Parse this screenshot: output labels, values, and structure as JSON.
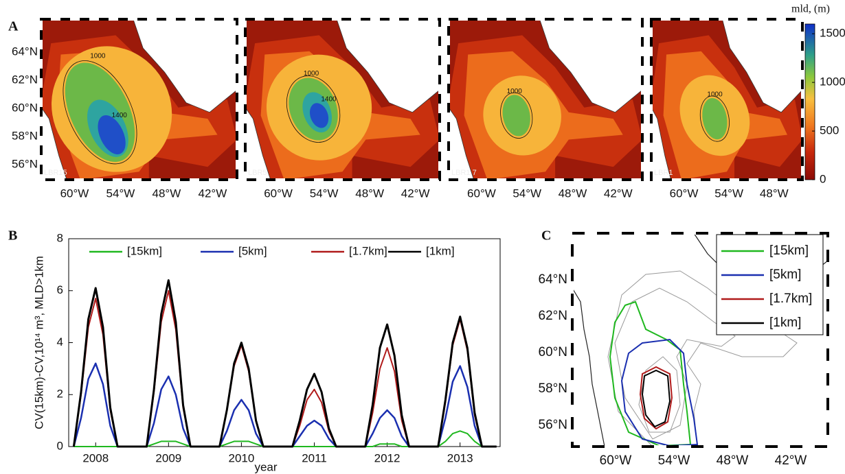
{
  "panel_labels": [
    "A",
    "B",
    "C"
  ],
  "maps": {
    "titles": [
      "LBR15",
      "LBR5",
      "LBR1.7",
      "LBR1"
    ],
    "lat_labels": [
      "64°N",
      "62°N",
      "60°N",
      "58°N",
      "56°N"
    ],
    "lon_labels": [
      "60°W",
      "54°W",
      "48°W",
      "42°W"
    ],
    "contour_labels": [
      "1000",
      "1400"
    ],
    "colorbar": {
      "title": "mld, (m)",
      "lim": [
        0,
        1600
      ],
      "ticks": [
        1500,
        1000,
        500,
        0
      ]
    }
  },
  "panel_c": {
    "lat_labels": [
      "64°N",
      "62°N",
      "60°N",
      "58°N",
      "56°N"
    ],
    "lon_labels": [
      "60°W",
      "54°W",
      "48°W",
      "42°W"
    ]
  },
  "chart_data": {
    "type": "line",
    "xlabel": "year",
    "ylabel": "CV(15km)-CV,10¹⁴ m³, MLD>1km",
    "x": [
      2007.7,
      2007.8,
      2007.9,
      2008.0,
      2008.1,
      2008.2,
      2008.3,
      2008.4,
      2008.5,
      2008.6,
      2008.7,
      2008.8,
      2008.9,
      2009.0,
      2009.1,
      2009.2,
      2009.3,
      2009.4,
      2009.5,
      2009.6,
      2009.7,
      2009.8,
      2009.9,
      2010.0,
      2010.1,
      2010.2,
      2010.3,
      2010.4,
      2010.5,
      2010.6,
      2010.7,
      2010.8,
      2010.9,
      2011.0,
      2011.1,
      2011.2,
      2011.3,
      2011.4,
      2011.5,
      2011.6,
      2011.7,
      2011.8,
      2011.9,
      2012.0,
      2012.1,
      2012.2,
      2012.3,
      2012.4,
      2012.5,
      2012.6,
      2012.7,
      2012.8,
      2012.9,
      2013.0,
      2013.1,
      2013.2,
      2013.3,
      2013.4,
      2013.5
    ],
    "xlim": [
      2007.63,
      2013.55
    ],
    "xticks": [
      2008,
      2009,
      2010,
      2011,
      2012,
      2013
    ],
    "ylim": [
      0,
      8
    ],
    "yticks": [
      0,
      2,
      4,
      6,
      8
    ],
    "series": [
      {
        "name": "[15km]",
        "color": "#1fb81f",
        "values": [
          0,
          0,
          0,
          0,
          0,
          0,
          0,
          0,
          0,
          0,
          0,
          0.1,
          0.2,
          0.2,
          0.2,
          0.1,
          0,
          0,
          0,
          0,
          0,
          0.1,
          0.2,
          0.2,
          0.2,
          0.1,
          0,
          0,
          0,
          0,
          0,
          0,
          0,
          0,
          0,
          0,
          0,
          0,
          0,
          0,
          0,
          0,
          0.1,
          0.1,
          0.1,
          0,
          0,
          0,
          0,
          0,
          0,
          0.2,
          0.5,
          0.6,
          0.5,
          0.2,
          0,
          0,
          0
        ]
      },
      {
        "name": "[5km]",
        "color": "#1a2fb0",
        "values": [
          0,
          1.1,
          2.6,
          3.2,
          2.4,
          0.8,
          0,
          0,
          0,
          0,
          0,
          0.9,
          2.2,
          2.7,
          2.0,
          0.7,
          0,
          0,
          0,
          0,
          0,
          0.6,
          1.4,
          1.8,
          1.4,
          0.5,
          0,
          0,
          0,
          0,
          0,
          0.4,
          0.8,
          1.0,
          0.8,
          0.3,
          0,
          0,
          0,
          0,
          0,
          0.5,
          1.1,
          1.4,
          1.1,
          0.4,
          0,
          0,
          0,
          0,
          0,
          1.1,
          2.5,
          3.1,
          2.3,
          0.8,
          0,
          0,
          0
        ]
      },
      {
        "name": "[1.7km]",
        "color": "#b01a1a",
        "values": [
          0,
          2.0,
          4.6,
          5.7,
          4.3,
          1.4,
          0,
          0,
          0,
          0,
          0,
          2.1,
          4.8,
          6.0,
          4.5,
          1.5,
          0,
          0,
          0,
          0,
          0,
          1.4,
          3.1,
          3.9,
          2.9,
          1.0,
          0,
          0,
          0,
          0,
          0,
          0.8,
          1.8,
          2.2,
          1.7,
          0.6,
          0,
          0,
          0,
          0,
          0,
          1.3,
          3.0,
          3.8,
          2.9,
          1.0,
          0,
          0,
          0,
          0,
          0,
          1.7,
          3.9,
          4.9,
          3.7,
          1.2,
          0,
          0,
          0
        ]
      },
      {
        "name": "[1km]",
        "color": "#000000",
        "values": [
          0,
          2.1,
          4.9,
          6.1,
          4.6,
          1.5,
          0,
          0,
          0,
          0,
          0,
          2.2,
          5.1,
          6.4,
          4.8,
          1.6,
          0,
          0,
          0,
          0,
          0,
          1.4,
          3.2,
          4.0,
          3.0,
          1.0,
          0,
          0,
          0,
          0,
          0,
          1.0,
          2.2,
          2.8,
          2.1,
          0.7,
          0,
          0,
          0,
          0,
          0,
          1.6,
          3.8,
          4.7,
          3.5,
          1.2,
          0,
          0,
          0,
          0,
          0,
          1.8,
          4.0,
          5.0,
          3.8,
          1.3,
          0,
          0,
          0
        ]
      }
    ]
  }
}
